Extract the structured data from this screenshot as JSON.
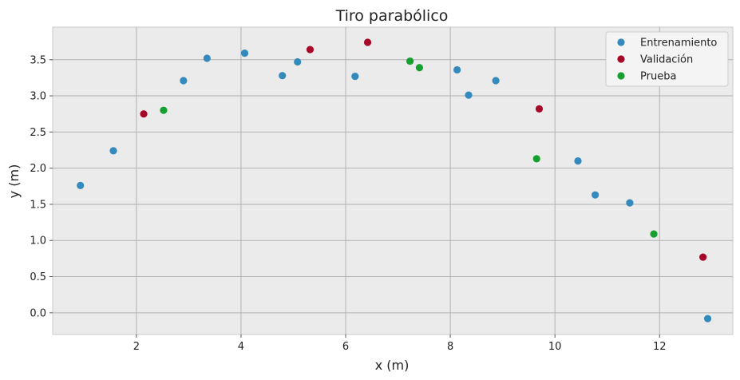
{
  "chart_data": {
    "type": "scatter",
    "title": "Tiro parabólico",
    "xlabel": "x (m)",
    "ylabel": "y (m)",
    "xlim": [
      0.4,
      13.4
    ],
    "ylim": [
      -0.3,
      3.95
    ],
    "xticks": [
      2,
      4,
      6,
      8,
      10,
      12
    ],
    "yticks": [
      0.0,
      0.5,
      1.0,
      1.5,
      2.0,
      2.5,
      3.0,
      3.5
    ],
    "xtick_labels": [
      "2",
      "4",
      "6",
      "8",
      "10",
      "12"
    ],
    "ytick_labels": [
      "0.0",
      "0.5",
      "1.0",
      "1.5",
      "2.0",
      "2.5",
      "3.0",
      "3.5"
    ],
    "grid": true,
    "legend_position": "top-right",
    "series": [
      {
        "name": "Entrenamiento",
        "color": "#348ABD",
        "points": [
          [
            0.93,
            1.76
          ],
          [
            1.56,
            2.24
          ],
          [
            2.9,
            3.21
          ],
          [
            3.35,
            3.52
          ],
          [
            4.07,
            3.59
          ],
          [
            4.79,
            3.28
          ],
          [
            5.08,
            3.47
          ],
          [
            6.18,
            3.27
          ],
          [
            8.13,
            3.36
          ],
          [
            8.35,
            3.01
          ],
          [
            8.87,
            3.21
          ],
          [
            10.44,
            2.1
          ],
          [
            10.77,
            1.63
          ],
          [
            11.43,
            1.52
          ],
          [
            12.92,
            -0.08
          ]
        ]
      },
      {
        "name": "Validación",
        "color": "#A60628",
        "points": [
          [
            2.14,
            2.75
          ],
          [
            5.32,
            3.64
          ],
          [
            6.42,
            3.74
          ],
          [
            9.7,
            2.82
          ],
          [
            12.83,
            0.77
          ]
        ]
      },
      {
        "name": "Prueba",
        "color": "#15A02F",
        "points": [
          [
            2.52,
            2.8
          ],
          [
            7.23,
            3.48
          ],
          [
            7.41,
            3.39
          ],
          [
            9.65,
            2.13
          ],
          [
            11.89,
            1.09
          ]
        ]
      }
    ]
  }
}
